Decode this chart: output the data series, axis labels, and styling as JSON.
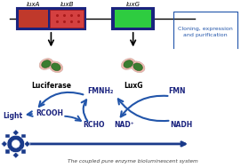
{
  "bg_color": "#ffffff",
  "fig_width": 2.71,
  "fig_height": 1.89,
  "dpi": 100,
  "luxa_color": "#c0392b",
  "luxb_color": "#d44040",
  "luxg_color": "#2ecc40",
  "box_outline_color": "#1a237e",
  "arrow_color": "#2255aa",
  "cloning_bracket_color": "#2255aa",
  "bottom_arrow_color": "#1a3a8a",
  "caption_color": "#444444",
  "labels": {
    "luxA": "luxA",
    "luxB": "luxB",
    "luxG": "luxG",
    "luciferase": "Luciferase",
    "luxg_enzyme": "LuxG",
    "fmnh2": "FMNH₂",
    "fmn": "FMN",
    "rcooh": "RCOOH",
    "rcho": "RCHO",
    "nad": "NAD⁺",
    "nadh": "NADH",
    "light": "Light",
    "cloning": "Cloning, expression\nand purification",
    "caption": "The coupled pure enzyme bioluminescent system"
  }
}
